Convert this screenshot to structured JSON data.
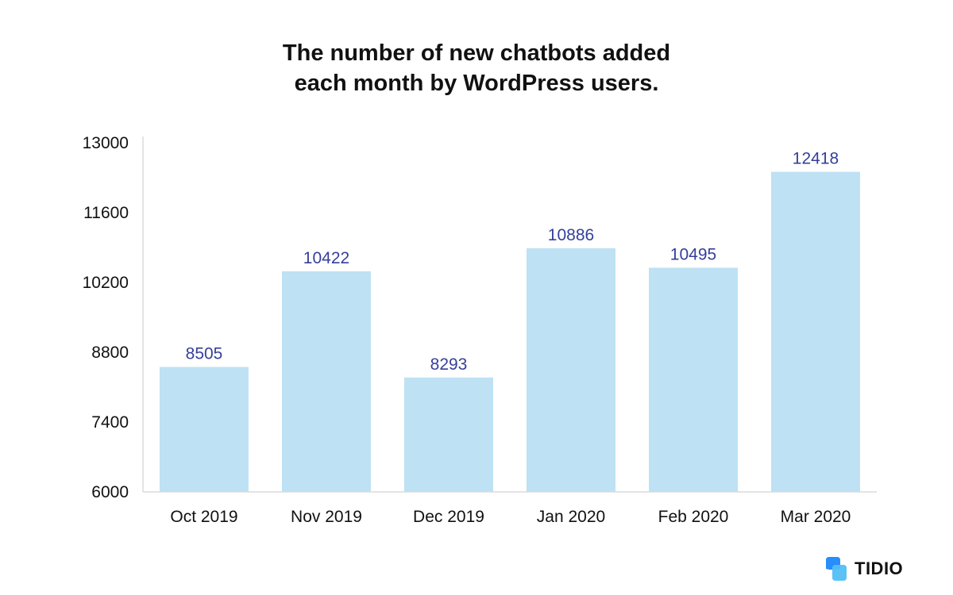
{
  "title_line1": "The number of new chatbots added",
  "title_line2": "each month by WordPress users.",
  "brand": {
    "name": "TIDIO",
    "logo_icon": "tidio-logo-icon",
    "logo_color": "#2a8dfc"
  },
  "colors": {
    "bar": "#bee2f4",
    "value_label": "#36409b",
    "axis_text": "#111111",
    "axis_line": "#c9c9c9"
  },
  "chart_data": {
    "type": "bar",
    "title": "The number of new chatbots added each month by WordPress users.",
    "categories": [
      "Oct 2019",
      "Nov 2019",
      "Dec 2019",
      "Jan 2020",
      "Feb 2020",
      "Mar 2020"
    ],
    "values": [
      8505,
      10422,
      8293,
      10886,
      10495,
      12418
    ],
    "value_labels": [
      "8505",
      "10422",
      "8293",
      "10886",
      "10495",
      "12418"
    ],
    "y_ticks": [
      "6000",
      "7400",
      "8800",
      "10200",
      "11600",
      "13000"
    ],
    "ylim": [
      6000,
      13000
    ],
    "xlabel": "",
    "ylabel": "",
    "grid": false,
    "legend": "none"
  }
}
